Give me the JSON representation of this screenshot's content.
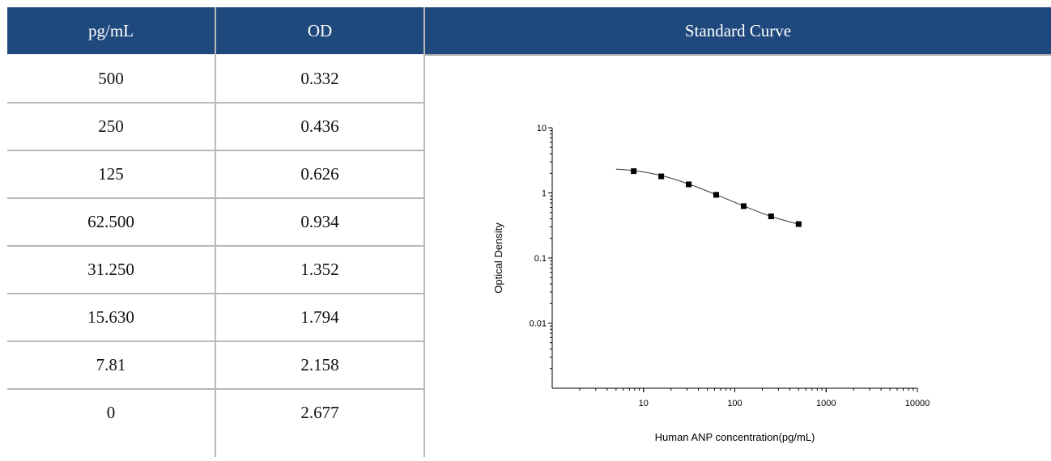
{
  "table": {
    "headers": {
      "pg": "pg/mL",
      "od": "OD",
      "curve": "Standard Curve"
    },
    "rows": [
      {
        "pg": "500",
        "od": "0.332"
      },
      {
        "pg": "250",
        "od": "0.436"
      },
      {
        "pg": "125",
        "od": "0.626"
      },
      {
        "pg": "62.500",
        "od": "0.934"
      },
      {
        "pg": "31.250",
        "od": "1.352"
      },
      {
        "pg": "15.630",
        "od": "1.794"
      },
      {
        "pg": "7.81",
        "od": "2.158"
      },
      {
        "pg": "0",
        "od": "2.677"
      }
    ]
  },
  "colors": {
    "header_bg": "#1f497d",
    "header_text": "#ffffff",
    "grid_line": "#b8b8b8"
  },
  "chart_data": {
    "type": "scatter",
    "xlabel": "Human ANP concentration(pg/mL)",
    "ylabel": "Optical Density",
    "x_scale": "log",
    "y_scale": "log",
    "xlim": [
      1,
      10000
    ],
    "ylim": [
      0.001,
      10
    ],
    "x_ticks": [
      10,
      100,
      1000,
      10000
    ],
    "x_tick_labels": [
      "10",
      "100",
      "1000",
      "10000"
    ],
    "y_ticks": [
      0.01,
      0.1,
      1,
      10
    ],
    "y_tick_labels": [
      "0.01",
      "0.1",
      "1",
      "10"
    ],
    "grid": false,
    "points": [
      {
        "x": 7.81,
        "y": 2.158
      },
      {
        "x": 15.63,
        "y": 1.794
      },
      {
        "x": 31.25,
        "y": 1.352
      },
      {
        "x": 62.5,
        "y": 0.934
      },
      {
        "x": 125,
        "y": 0.626
      },
      {
        "x": 250,
        "y": 0.436
      },
      {
        "x": 500,
        "y": 0.332
      }
    ],
    "fit_curve": {
      "x": [
        5,
        7.81,
        15.63,
        31.25,
        62.5,
        125,
        250,
        500
      ],
      "y": [
        2.32,
        2.2,
        1.85,
        1.37,
        0.94,
        0.63,
        0.435,
        0.33
      ]
    }
  }
}
